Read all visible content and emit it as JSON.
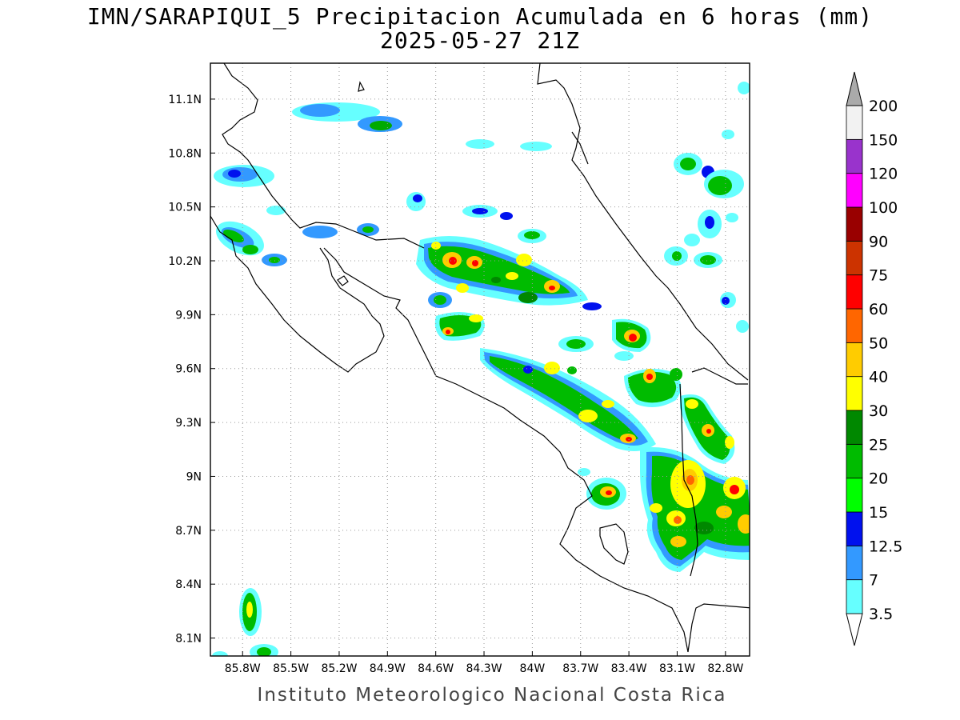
{
  "title": {
    "line1": "IMN/SARAPIQUI_5 Precipitacion Acumulada en 6 horas (mm)",
    "line2": "2025-05-27 21Z"
  },
  "footer": "Instituto Meteorologico Nacional Costa Rica",
  "map": {
    "lon_range": [
      -86.0,
      -82.65
    ],
    "lat_range": [
      8.0,
      11.3
    ],
    "lon_ticks": [
      {
        "value": -85.8,
        "label": "85.8W"
      },
      {
        "value": -85.5,
        "label": "85.5W"
      },
      {
        "value": -85.2,
        "label": "85.2W"
      },
      {
        "value": -84.9,
        "label": "84.9W"
      },
      {
        "value": -84.6,
        "label": "84.6W"
      },
      {
        "value": -84.3,
        "label": "84.3W"
      },
      {
        "value": -84.0,
        "label": "84W"
      },
      {
        "value": -83.7,
        "label": "83.7W"
      },
      {
        "value": -83.4,
        "label": "83.4W"
      },
      {
        "value": -83.1,
        "label": "83.1W"
      },
      {
        "value": -82.8,
        "label": "82.8W"
      }
    ],
    "lat_ticks": [
      {
        "value": 11.1,
        "label": "11.1N"
      },
      {
        "value": 10.8,
        "label": "10.8N"
      },
      {
        "value": 10.5,
        "label": "10.5N"
      },
      {
        "value": 10.2,
        "label": "10.2N"
      },
      {
        "value": 9.9,
        "label": "9.9N"
      },
      {
        "value": 9.6,
        "label": "9.6N"
      },
      {
        "value": 9.3,
        "label": "9.3N"
      },
      {
        "value": 9.0,
        "label": "9N"
      },
      {
        "value": 8.7,
        "label": "8.7N"
      },
      {
        "value": 8.4,
        "label": "8.4N"
      },
      {
        "value": 8.1,
        "label": "8.1N"
      }
    ]
  },
  "colorbar": {
    "levels": [
      {
        "label": "3.5",
        "color": "#66ffff"
      },
      {
        "label": "7",
        "color": "#3399ff"
      },
      {
        "label": "12.5",
        "color": "#0011ee"
      },
      {
        "label": "15",
        "color": "#00ff00"
      },
      {
        "label": "20",
        "color": "#00bb00"
      },
      {
        "label": "25",
        "color": "#008800"
      },
      {
        "label": "30",
        "color": "#ffff00"
      },
      {
        "label": "40",
        "color": "#ffcc00"
      },
      {
        "label": "50",
        "color": "#ff6600"
      },
      {
        "label": "60",
        "color": "#ff0000"
      },
      {
        "label": "75",
        "color": "#cc3300"
      },
      {
        "label": "90",
        "color": "#990000"
      },
      {
        "label": "100",
        "color": "#ff00ff"
      },
      {
        "label": "120",
        "color": "#9933cc"
      },
      {
        "label": "150",
        "color": "#f2f2f2"
      },
      {
        "label": "200",
        "color": "#aaaaaa"
      }
    ]
  },
  "precip_cells": [
    {
      "lon": -84.45,
      "lat": 10.08,
      "level": 9
    },
    {
      "lon": -84.32,
      "lat": 10.02,
      "level": 8
    },
    {
      "lon": -84.18,
      "lat": 10.12,
      "level": 6
    },
    {
      "lon": -83.95,
      "lat": 10.07,
      "level": 7
    },
    {
      "lon": -83.87,
      "lat": 10.02,
      "level": 8
    },
    {
      "lon": -84.4,
      "lat": 9.86,
      "level": 8
    },
    {
      "lon": -84.28,
      "lat": 9.9,
      "level": 6
    },
    {
      "lon": -83.33,
      "lat": 9.78,
      "level": 9
    },
    {
      "lon": -83.18,
      "lat": 9.55,
      "level": 8
    },
    {
      "lon": -83.32,
      "lat": 9.22,
      "level": 8
    },
    {
      "lon": -83.6,
      "lat": 9.37,
      "level": 7
    },
    {
      "lon": -82.9,
      "lat": 8.93,
      "level": 7
    },
    {
      "lon": -82.98,
      "lat": 8.86,
      "level": 7
    },
    {
      "lon": -82.73,
      "lat": 8.92,
      "level": 8
    },
    {
      "lon": -82.67,
      "lat": 8.75,
      "level": 8
    },
    {
      "lon": -82.88,
      "lat": 8.7,
      "level": 7
    },
    {
      "lon": -83.4,
      "lat": 8.93,
      "level": 8
    },
    {
      "lon": -82.8,
      "lat": 9.25,
      "level": 7
    },
    {
      "lon": -85.82,
      "lat": 8.28,
      "level": 6
    }
  ]
}
